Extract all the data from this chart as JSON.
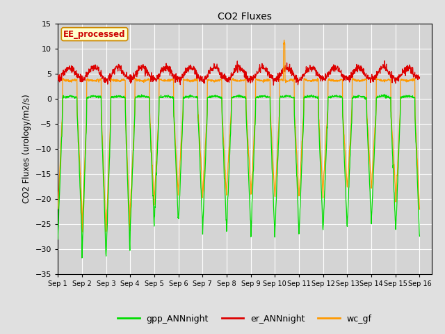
{
  "title": "CO2 Fluxes",
  "ylabel": "CO2 Fluxes (urology/m2/s)",
  "ylim": [
    -35,
    15
  ],
  "yticks": [
    -35,
    -30,
    -25,
    -20,
    -15,
    -10,
    -5,
    0,
    5,
    10,
    15
  ],
  "background_color": "#e0e0e0",
  "axes_bg_color": "#d4d4d4",
  "grid_color": "#ffffff",
  "legend_label": "EE_processed",
  "legend_bbox_color": "#ffffcc",
  "legend_bbox_edge": "#cc8800",
  "gpp_color": "#00dd00",
  "er_color": "#dd0000",
  "wc_color": "#ff9900",
  "gpp_label": "gpp_ANNnight",
  "er_label": "er_ANNnight",
  "wc_label": "wc_gf",
  "n_days": 15,
  "ppd": 96,
  "xtick_labels": [
    "Sep 1",
    "Sep 2",
    "Sep 3",
    "Sep 4",
    "Sep 5",
    "Sep 6",
    "Sep 7",
    "Sep 8",
    "Sep 9",
    "Sep 10",
    "Sep 11",
    "Sep 12",
    "Sep 13",
    "Sep 14",
    "Sep 15",
    "Sep 16"
  ]
}
